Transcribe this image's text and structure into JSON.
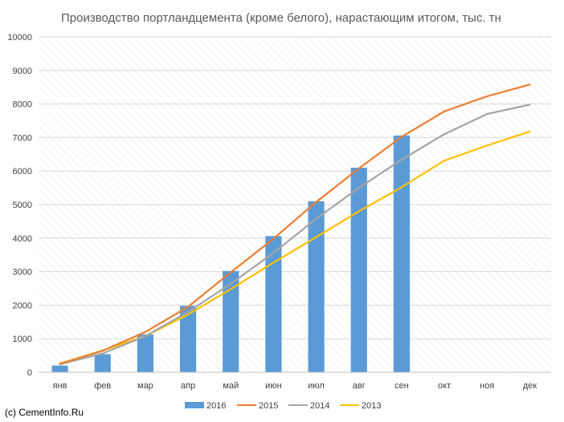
{
  "chart_data": {
    "type": "bar",
    "title": "Производство портландцемента (кроме белого), нарастающим итогом, тыс. тн",
    "xlabel": "",
    "ylabel": "",
    "categories": [
      "янв",
      "фев",
      "мар",
      "апр",
      "май",
      "июн",
      "июл",
      "авг",
      "сен",
      "окт",
      "ноя",
      "дек"
    ],
    "ylim": [
      0,
      10000
    ],
    "yticks": [
      0,
      1000,
      2000,
      3000,
      4000,
      5000,
      6000,
      7000,
      8000,
      9000,
      10000
    ],
    "grid": true,
    "legend_position": "bottom",
    "series": [
      {
        "name": "2016",
        "type": "bar",
        "color": "#5b9bd5",
        "values": [
          200,
          540,
          1130,
          1980,
          3020,
          4060,
          5100,
          6100,
          7060,
          null,
          null,
          null
        ]
      },
      {
        "name": "2015",
        "type": "line",
        "color": "#ed7d31",
        "values": [
          250,
          640,
          1200,
          1950,
          2980,
          3980,
          5080,
          6080,
          7020,
          7780,
          8230,
          8580
        ]
      },
      {
        "name": "2014",
        "type": "line",
        "color": "#a5a5a5",
        "values": [
          240,
          560,
          1080,
          1800,
          2640,
          3560,
          4580,
          5500,
          6340,
          7100,
          7700,
          7980
        ]
      },
      {
        "name": "2013",
        "type": "line",
        "color": "#ffc000",
        "values": [
          260,
          650,
          1080,
          1720,
          2480,
          3270,
          4030,
          4800,
          5520,
          6310,
          6760,
          7180
        ]
      }
    ]
  },
  "source_label": "(c) CementInfo.Ru"
}
